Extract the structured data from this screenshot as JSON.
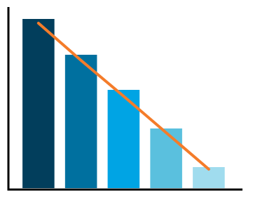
{
  "chart_data": {
    "type": "bar",
    "categories": [
      null,
      null,
      null,
      null,
      null
    ],
    "ylim": [
      0,
      258
    ],
    "series": [
      {
        "type": "bar",
        "colors": [
          "#023e5c",
          "#00709f",
          "#00a4e4",
          "#5ac0de",
          "#a0dcee"
        ],
        "values": [
          241,
          190,
          140,
          85,
          30
        ]
      },
      {
        "type": "line",
        "color": "#f47c2a",
        "values": [
          235,
          182,
          131,
          79,
          27
        ]
      }
    ]
  }
}
